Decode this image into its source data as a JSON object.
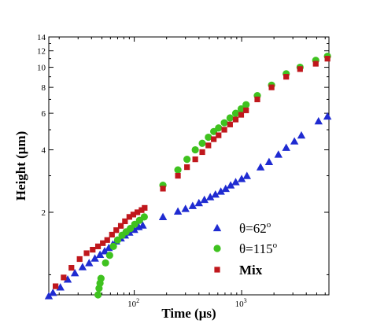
{
  "chart_data": {
    "type": "scatter",
    "xlabel": "Time (μs)",
    "ylabel": "Height (μm)",
    "xscale": "log",
    "yscale": "log",
    "xlim": [
      16,
      6500
    ],
    "ylim": [
      0.8,
      14
    ],
    "x_ticks": [
      {
        "value": 100,
        "base": "10",
        "exp": "2"
      },
      {
        "value": 1000,
        "base": "10",
        "exp": "3"
      }
    ],
    "y_ticks": [
      {
        "value": 2,
        "label": "2"
      },
      {
        "value": 4,
        "label": "4"
      },
      {
        "value": 6,
        "label": "6"
      },
      {
        "value": 8,
        "label": "8"
      },
      {
        "value": 10,
        "label": "10"
      },
      {
        "value": 12,
        "label": "12"
      },
      {
        "value": 14,
        "label": "14"
      }
    ],
    "series": [
      {
        "name": "θ=62°",
        "legend_base": "θ=62",
        "legend_sup": "o",
        "color": "#1f2bd1",
        "marker": "triangle",
        "x": [
          16,
          17.5,
          20.5,
          24,
          28,
          33,
          38,
          43,
          48,
          53,
          58,
          63,
          68,
          75,
          82,
          90,
          100,
          110,
          120,
          185,
          255,
          300,
          350,
          400,
          450,
          510,
          570,
          640,
          710,
          790,
          880,
          1000,
          1120,
          1500,
          1800,
          2200,
          2600,
          3100,
          3600,
          5200,
          6300
        ],
        "y": [
          0.79,
          0.82,
          0.87,
          0.95,
          1.02,
          1.09,
          1.14,
          1.2,
          1.25,
          1.3,
          1.35,
          1.4,
          1.45,
          1.5,
          1.55,
          1.6,
          1.65,
          1.7,
          1.73,
          1.9,
          2.02,
          2.08,
          2.15,
          2.22,
          2.3,
          2.37,
          2.44,
          2.52,
          2.6,
          2.7,
          2.8,
          2.9,
          3.0,
          3.3,
          3.5,
          3.8,
          4.1,
          4.4,
          4.7,
          5.5,
          5.8
        ]
      },
      {
        "name": "θ=115°",
        "legend_base": "θ=115",
        "legend_sup": "o",
        "color": "#3fc21f",
        "marker": "circle",
        "x": [
          46,
          47,
          48,
          49,
          54,
          59,
          64,
          70,
          77,
          84,
          92,
          101,
          112,
          124,
          185,
          255,
          310,
          370,
          430,
          490,
          550,
          610,
          690,
          780,
          880,
          990,
          1100,
          1400,
          1900,
          2600,
          3500,
          4900,
          6300
        ],
        "y": [
          0.8,
          0.86,
          0.91,
          0.96,
          1.14,
          1.24,
          1.37,
          1.47,
          1.55,
          1.61,
          1.67,
          1.75,
          1.83,
          1.9,
          2.7,
          3.2,
          3.6,
          4.0,
          4.3,
          4.6,
          4.9,
          5.1,
          5.4,
          5.7,
          6.0,
          6.3,
          6.6,
          7.3,
          8.2,
          9.3,
          10.0,
          10.8,
          11.3
        ]
      },
      {
        "name": "Mix",
        "legend_base": "Mix",
        "legend_sup": "",
        "color": "#c0171c",
        "marker": "square",
        "x": [
          18.5,
          22,
          26,
          31,
          36,
          41,
          46,
          51,
          56,
          62,
          68,
          75,
          82,
          90,
          98,
          107,
          117,
          125,
          185,
          255,
          310,
          370,
          430,
          490,
          550,
          610,
          690,
          780,
          880,
          990,
          1100,
          1400,
          1900,
          2600,
          3500,
          4900,
          6300
        ],
        "y": [
          0.88,
          0.97,
          1.08,
          1.19,
          1.27,
          1.32,
          1.37,
          1.42,
          1.47,
          1.56,
          1.64,
          1.72,
          1.81,
          1.9,
          1.95,
          2.0,
          2.05,
          2.1,
          2.6,
          3.0,
          3.3,
          3.6,
          3.9,
          4.2,
          4.5,
          4.7,
          5.0,
          5.3,
          5.6,
          5.9,
          6.2,
          7.0,
          8.0,
          9.0,
          9.8,
          10.4,
          11.0
        ]
      }
    ],
    "legend_position": "bottom-right"
  }
}
